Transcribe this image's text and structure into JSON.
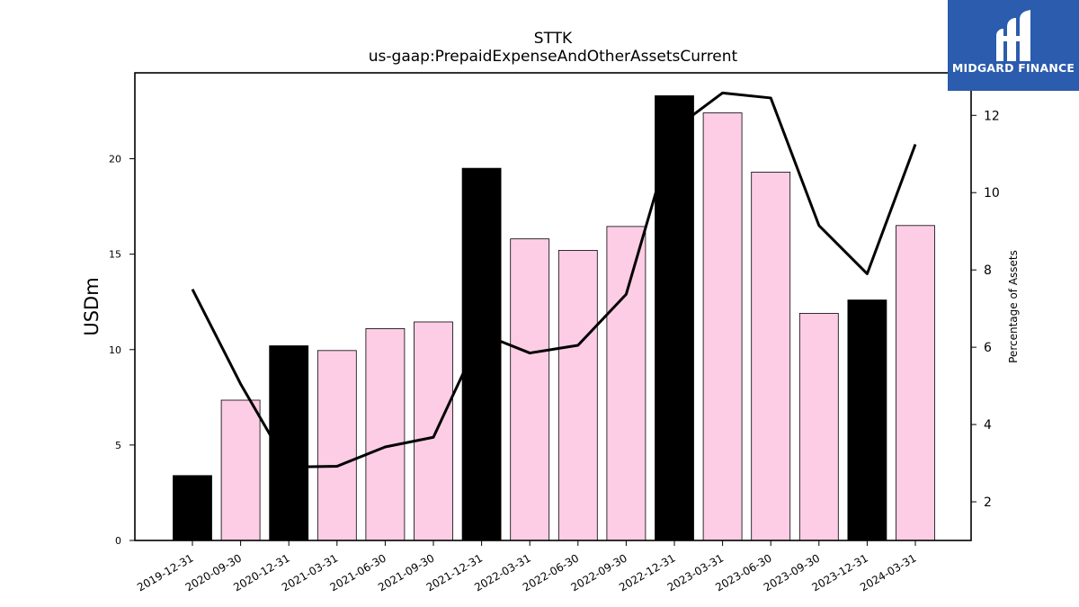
{
  "chart_data": {
    "type": "bar",
    "title": "STTK",
    "subtitle": "us-gaap:PrepaidExpenseAndOtherAssetsCurrent",
    "ylabel": "USDm",
    "y2label": "Percentage of Assets",
    "categories": [
      "2019-12-31",
      "2020-09-30",
      "2020-12-31",
      "2021-03-31",
      "2021-06-30",
      "2021-09-30",
      "2021-12-31",
      "2022-03-31",
      "2022-06-30",
      "2022-09-30",
      "2022-12-31",
      "2023-03-31",
      "2023-06-30",
      "2023-09-30",
      "2023-12-31",
      "2024-03-31"
    ],
    "series": [
      {
        "axis": "left",
        "kind": "bar",
        "values": [
          3.4,
          7.35,
          10.2,
          9.95,
          11.1,
          11.45,
          19.5,
          15.8,
          15.2,
          16.45,
          23.3,
          22.4,
          19.3,
          11.9,
          12.6,
          16.5
        ],
        "colors": [
          "#000000",
          "#fccde5",
          "#000000",
          "#fccde5",
          "#fccde5",
          "#fccde5",
          "#000000",
          "#fccde5",
          "#fccde5",
          "#fccde5",
          "#000000",
          "#fccde5",
          "#fccde5",
          "#fccde5",
          "#000000",
          "#fccde5"
        ]
      },
      {
        "axis": "right",
        "kind": "line",
        "values": [
          7.5,
          5.05,
          2.9,
          2.92,
          3.42,
          3.67,
          6.35,
          5.85,
          6.05,
          7.37,
          11.65,
          12.58,
          12.45,
          9.15,
          7.9,
          11.25
        ],
        "color": "#000000"
      }
    ],
    "ylim": [
      0,
      24.5
    ],
    "y2lim": [
      1,
      13.1
    ],
    "yticks": [
      0,
      5,
      10,
      15,
      20
    ],
    "y2ticks": [
      2,
      4,
      6,
      8,
      10,
      12
    ],
    "grid": false
  },
  "brand": {
    "name": "MIDGARD FINANCE",
    "color": "#2b5cad"
  }
}
